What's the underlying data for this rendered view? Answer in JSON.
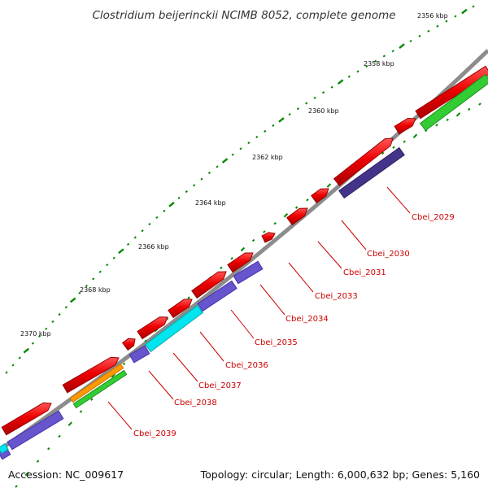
{
  "title": "Clostridium beijerinckii NCIMB 8052, complete genome",
  "footer": {
    "accession": "Accession: NC_009617",
    "summary": "Topology: circular; Length: 6,000,632 bp; Genes: 5,160"
  },
  "colors": {
    "backbone": "#8c8c8c",
    "feature_red": "#ee0000",
    "feature_blue": "#6655cc",
    "feature_dark_blue": "#443388",
    "feature_cyan": "#00e5ee",
    "feature_green": "#33cc33",
    "feature_orange": "#ff9900",
    "tick_green": "#008800",
    "label_red": "#cc0000"
  },
  "scale_labels": [
    "2356 kbp",
    "2358 kbp",
    "2360 kbp",
    "2362 kbp",
    "2364 kbp",
    "2366 kbp",
    "2368 kbp",
    "2370 kbp"
  ],
  "gene_labels": [
    "Cbei_2029",
    "Cbei_2030",
    "Cbei_2031",
    "Cbei_2033",
    "Cbei_2034",
    "Cbei_2035",
    "Cbei_2036",
    "Cbei_2037",
    "Cbei_2038",
    "Cbei_2039"
  ]
}
